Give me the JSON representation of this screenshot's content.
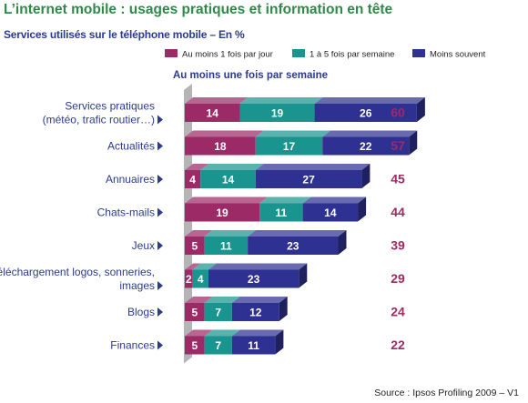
{
  "header": {
    "title": "L’internet mobile : usages pratiques et  information en tête",
    "subtitle": "Services utilisés sur le téléphone mobile – En %"
  },
  "footer": {
    "source": "Source : Ipsos Profiling 2009 – V1"
  },
  "chart_data": {
    "type": "bar",
    "orientation": "horizontal",
    "stacked": true,
    "categories": [
      [
        "Services pratiques",
        "(météo, trafic routier…)"
      ],
      [
        "Actualités"
      ],
      [
        "Annuaires"
      ],
      [
        "Chats-mails"
      ],
      [
        "Jeux"
      ],
      [
        "Téléchargement logos, sonneries,",
        "images"
      ],
      [
        "Blogs"
      ],
      [
        "Finances"
      ]
    ],
    "series": [
      {
        "name": "Au moins 1 fois par jour",
        "color": "#9c2a66",
        "values": [
          14,
          18,
          4,
          19,
          5,
          2,
          5,
          5
        ]
      },
      {
        "name": "1 à 5 fois par semaine",
        "color": "#19948f",
        "values": [
          19,
          17,
          14,
          11,
          11,
          4,
          7,
          7
        ]
      },
      {
        "name": "Moins souvent",
        "color": "#2f3192",
        "values": [
          26,
          22,
          27,
          14,
          23,
          23,
          12,
          11
        ]
      }
    ],
    "totals": {
      "label": "Au moins une fois par semaine",
      "values": [
        60,
        57,
        45,
        44,
        39,
        29,
        24,
        22
      ],
      "color": "#9c2a66"
    },
    "legend_position": "top-right",
    "grid": false
  }
}
